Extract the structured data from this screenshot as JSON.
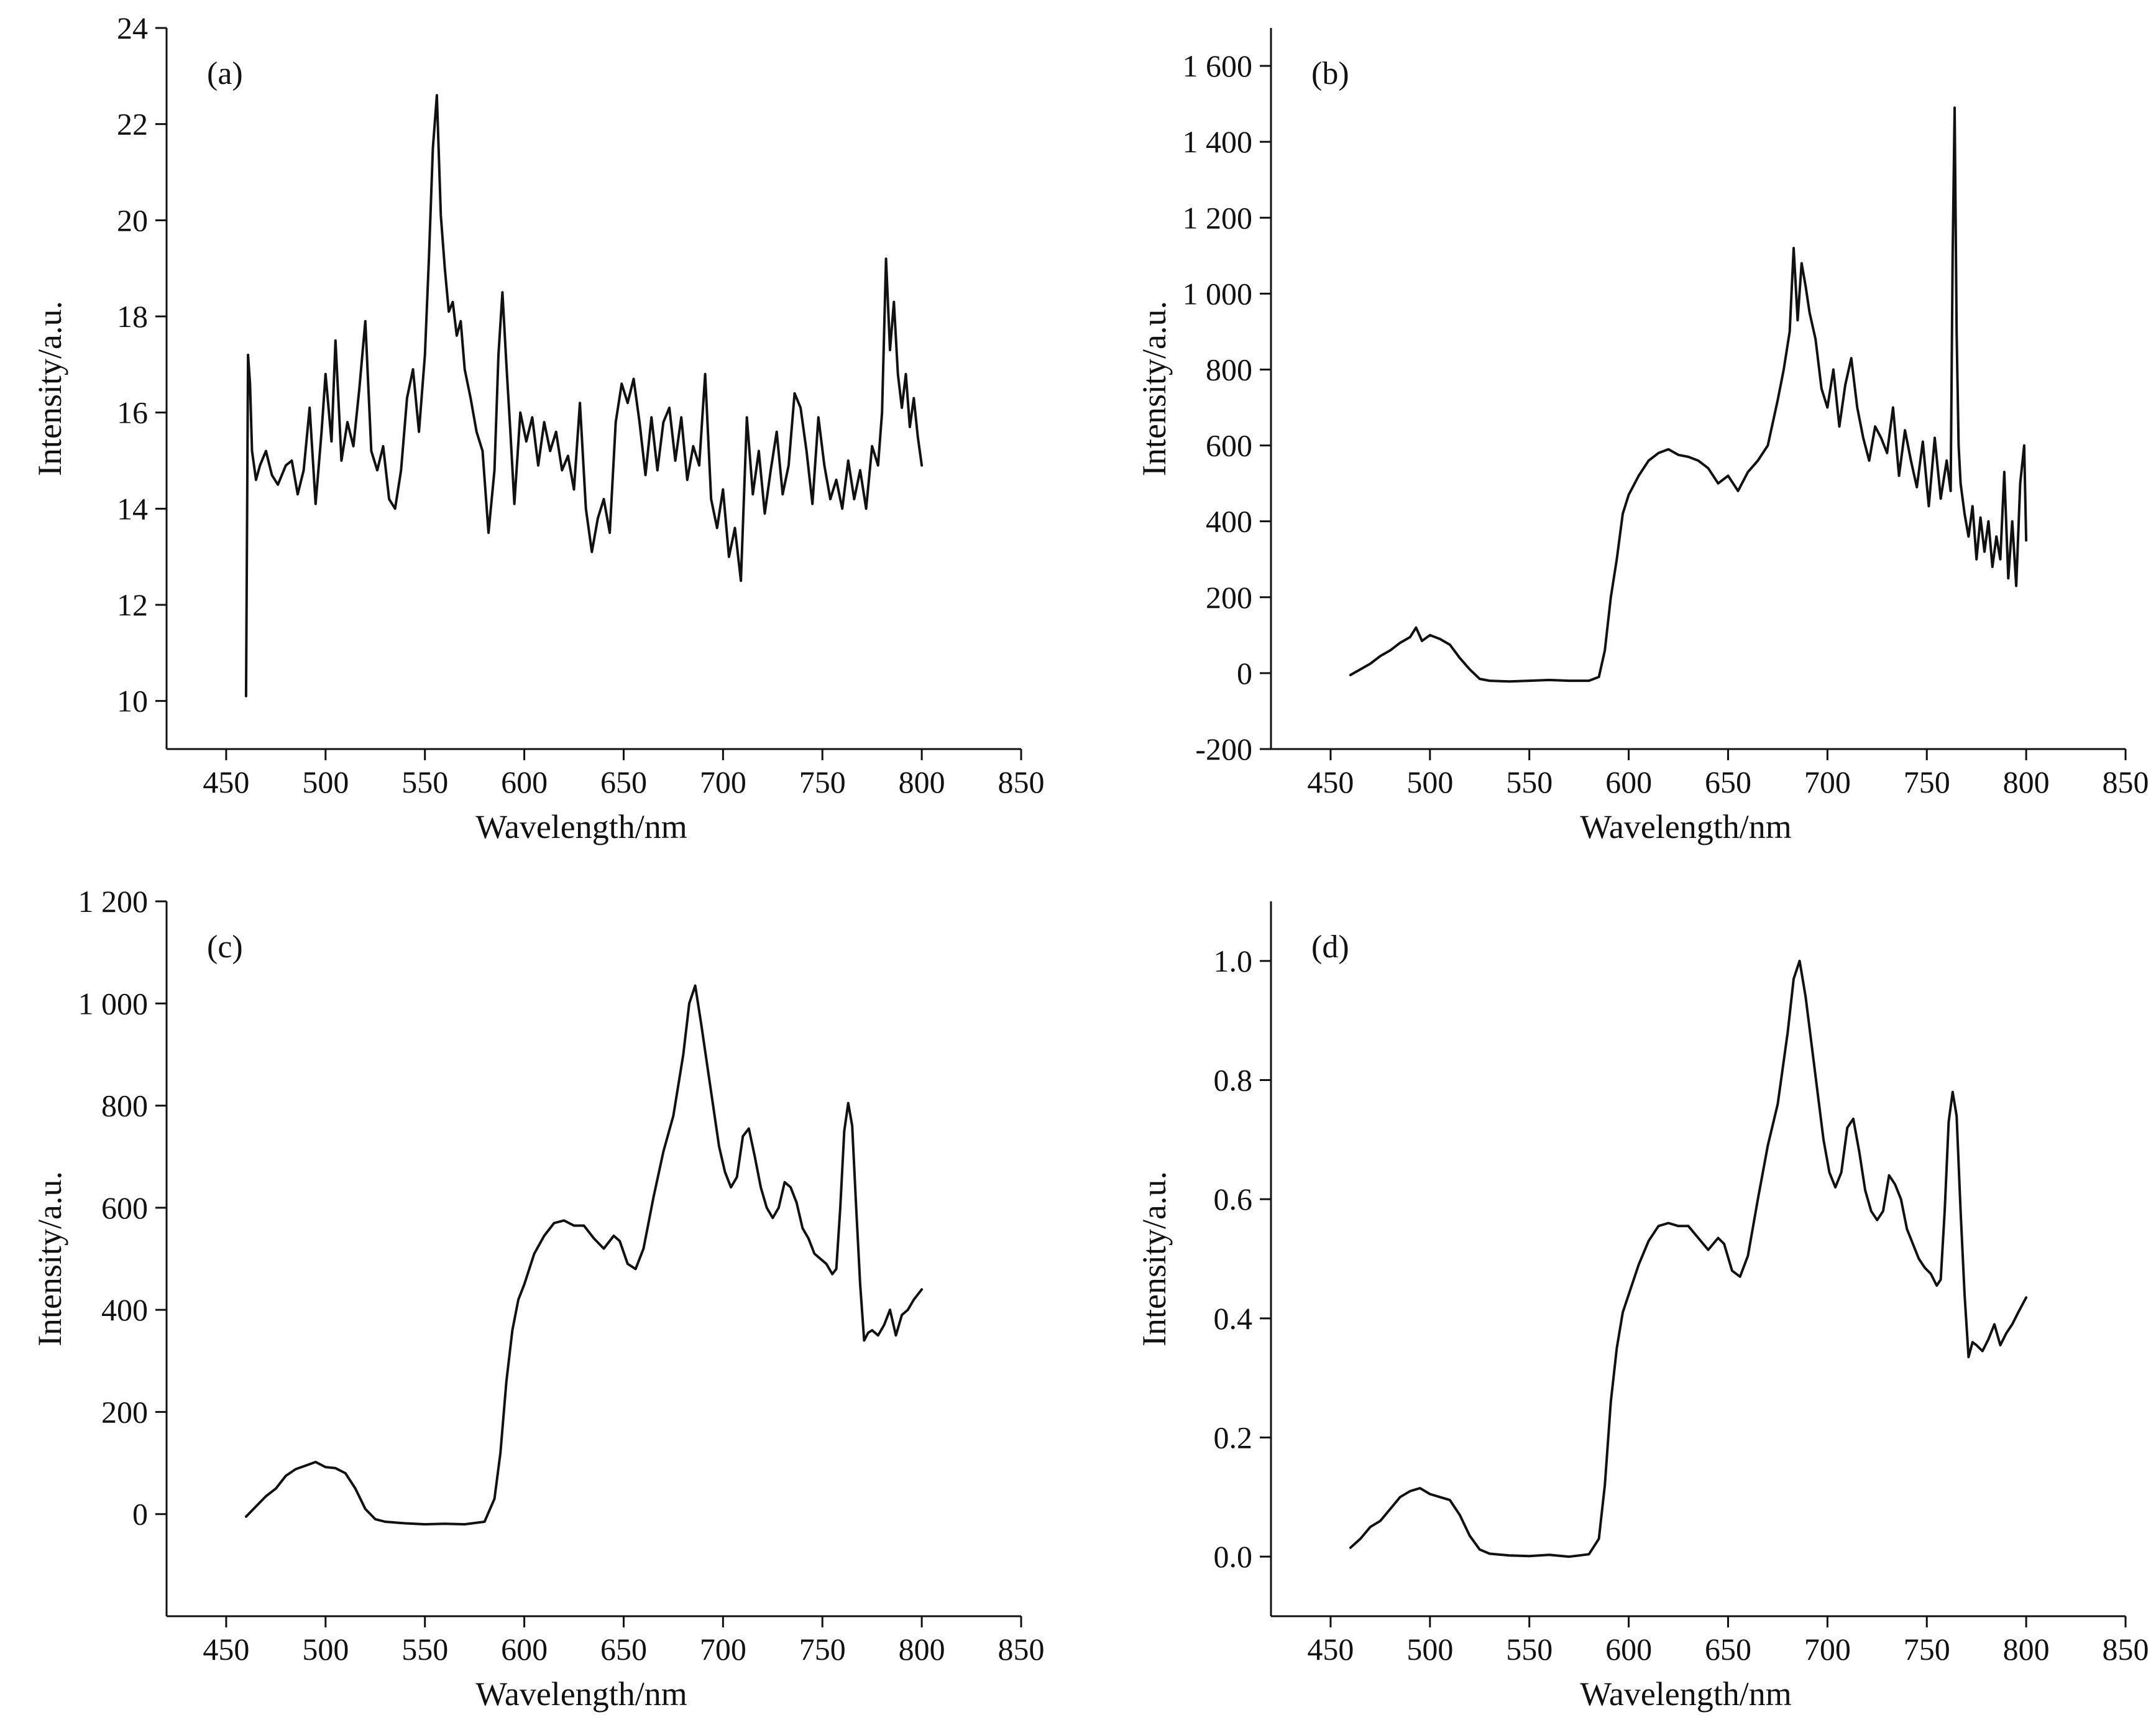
{
  "figure": {
    "background": "#ffffff",
    "line_color": "#111111"
  },
  "chart_data": [
    {
      "id": "a",
      "type": "line",
      "panel_label": "(a)",
      "xlabel": "Wavelength/nm",
      "ylabel": "Intensity/a.u.",
      "xlim": [
        420,
        850
      ],
      "ylim": [
        9,
        24
      ],
      "xticks": [
        450,
        500,
        550,
        600,
        650,
        700,
        750,
        800,
        850
      ],
      "yticks": [
        10,
        12,
        14,
        16,
        18,
        20,
        22,
        24
      ],
      "ytick_labels": [
        "10",
        "12",
        "14",
        "16",
        "18",
        "20",
        "22",
        "24"
      ],
      "grid": false,
      "legend": "none",
      "series": [
        {
          "x": [
            460,
            461,
            462,
            463,
            465,
            467,
            470,
            473,
            476,
            480,
            483,
            486,
            489,
            492,
            495,
            498,
            500,
            503,
            505,
            508,
            511,
            514,
            517,
            520,
            523,
            526,
            529,
            532,
            535,
            538,
            541,
            544,
            547,
            550,
            552,
            554,
            556,
            558,
            560,
            562,
            564,
            566,
            568,
            570,
            573,
            576,
            579,
            582,
            585,
            587,
            589,
            591,
            593,
            595,
            598,
            601,
            604,
            607,
            610,
            613,
            616,
            619,
            622,
            625,
            628,
            631,
            634,
            637,
            640,
            643,
            646,
            649,
            652,
            655,
            658,
            661,
            664,
            667,
            670,
            673,
            676,
            679,
            682,
            685,
            688,
            691,
            694,
            697,
            700,
            703,
            706,
            709,
            712,
            715,
            718,
            721,
            724,
            727,
            730,
            733,
            736,
            739,
            742,
            745,
            748,
            751,
            754,
            757,
            760,
            763,
            766,
            769,
            772,
            775,
            778,
            780,
            782,
            784,
            786,
            788,
            790,
            792,
            794,
            796,
            798,
            800
          ],
          "values": [
            10.1,
            17.2,
            16.6,
            15.2,
            14.6,
            14.9,
            15.2,
            14.7,
            14.5,
            14.9,
            15.0,
            14.3,
            14.8,
            16.1,
            14.1,
            15.6,
            16.8,
            15.4,
            17.5,
            15.0,
            15.8,
            15.3,
            16.5,
            17.9,
            15.2,
            14.8,
            15.3,
            14.2,
            14.0,
            14.8,
            16.3,
            16.9,
            15.6,
            17.2,
            19.2,
            21.5,
            22.6,
            20.1,
            19.0,
            18.1,
            18.3,
            17.6,
            17.9,
            16.9,
            16.3,
            15.6,
            15.2,
            13.5,
            14.8,
            17.2,
            18.5,
            17.0,
            15.6,
            14.1,
            16.0,
            15.4,
            15.9,
            14.9,
            15.8,
            15.2,
            15.6,
            14.8,
            15.1,
            14.4,
            16.2,
            14.0,
            13.1,
            13.8,
            14.2,
            13.5,
            15.8,
            16.6,
            16.2,
            16.7,
            15.8,
            14.7,
            15.9,
            14.8,
            15.8,
            16.1,
            15.0,
            15.9,
            14.6,
            15.3,
            14.9,
            16.8,
            14.2,
            13.6,
            14.4,
            13.0,
            13.6,
            12.5,
            15.9,
            14.3,
            15.2,
            13.9,
            14.8,
            15.6,
            14.3,
            14.9,
            16.4,
            16.1,
            15.2,
            14.1,
            15.9,
            14.9,
            14.2,
            14.6,
            14.0,
            15.0,
            14.2,
            14.8,
            14.0,
            15.3,
            14.9,
            16.0,
            19.2,
            17.3,
            18.3,
            16.8,
            16.1,
            16.8,
            15.7,
            16.3,
            15.5,
            14.9
          ]
        }
      ]
    },
    {
      "id": "b",
      "type": "line",
      "panel_label": "(b)",
      "xlabel": "Wavelength/nm",
      "ylabel": "Intensity/a.u.",
      "xlim": [
        420,
        850
      ],
      "ylim": [
        -200,
        1700
      ],
      "xticks": [
        450,
        500,
        550,
        600,
        650,
        700,
        750,
        800,
        850
      ],
      "yticks": [
        -200,
        0,
        200,
        400,
        600,
        800,
        1000,
        1200,
        1400,
        1600
      ],
      "ytick_labels": [
        "-200",
        "0",
        "200",
        "400",
        "600",
        "800",
        "1 000",
        "1 200",
        "1 400",
        "1 600"
      ],
      "grid": false,
      "legend": "none",
      "series": [
        {
          "x": [
            460,
            465,
            470,
            475,
            480,
            485,
            490,
            493,
            496,
            500,
            505,
            510,
            515,
            520,
            525,
            530,
            540,
            550,
            560,
            570,
            580,
            585,
            588,
            591,
            594,
            597,
            600,
            605,
            610,
            615,
            620,
            625,
            630,
            635,
            640,
            645,
            650,
            655,
            660,
            665,
            670,
            675,
            678,
            681,
            683,
            685,
            687,
            689,
            691,
            694,
            697,
            700,
            703,
            706,
            709,
            712,
            715,
            718,
            721,
            724,
            727,
            730,
            733,
            736,
            739,
            742,
            745,
            748,
            751,
            754,
            757,
            760,
            762,
            763,
            764,
            765,
            766,
            767,
            769,
            771,
            773,
            775,
            777,
            779,
            781,
            783,
            785,
            787,
            789,
            791,
            793,
            795,
            797,
            799,
            800
          ],
          "values": [
            -5,
            10,
            25,
            45,
            60,
            80,
            95,
            120,
            85,
            100,
            90,
            75,
            40,
            10,
            -15,
            -20,
            -22,
            -20,
            -18,
            -20,
            -20,
            -10,
            60,
            200,
            300,
            420,
            470,
            520,
            560,
            580,
            590,
            575,
            570,
            560,
            540,
            500,
            520,
            480,
            530,
            560,
            600,
            720,
            800,
            900,
            1120,
            930,
            1080,
            1020,
            950,
            880,
            750,
            700,
            800,
            650,
            760,
            830,
            700,
            620,
            560,
            650,
            620,
            580,
            700,
            520,
            640,
            560,
            490,
            610,
            440,
            620,
            460,
            560,
            480,
            1100,
            1490,
            900,
            600,
            500,
            420,
            360,
            440,
            300,
            410,
            320,
            400,
            280,
            360,
            300,
            530,
            250,
            400,
            230,
            500,
            600,
            350
          ]
        }
      ]
    },
    {
      "id": "c",
      "type": "line",
      "panel_label": "(c)",
      "xlabel": "Wavelength/nm",
      "ylabel": "Intensity/a.u.",
      "xlim": [
        420,
        850
      ],
      "ylim": [
        -200,
        1200
      ],
      "xticks": [
        450,
        500,
        550,
        600,
        650,
        700,
        750,
        800,
        850
      ],
      "yticks": [
        0,
        200,
        400,
        600,
        800,
        1000,
        1200
      ],
      "ytick_labels": [
        "0",
        "200",
        "400",
        "600",
        "800",
        "1 000",
        "1 200"
      ],
      "grid": false,
      "legend": "none",
      "series": [
        {
          "x": [
            460,
            465,
            470,
            475,
            480,
            485,
            490,
            495,
            500,
            505,
            510,
            515,
            520,
            525,
            530,
            540,
            550,
            560,
            570,
            580,
            585,
            588,
            591,
            594,
            597,
            600,
            605,
            610,
            615,
            620,
            625,
            630,
            635,
            640,
            645,
            648,
            652,
            656,
            660,
            665,
            670,
            675,
            680,
            683,
            686,
            689,
            692,
            695,
            698,
            701,
            704,
            707,
            710,
            713,
            716,
            719,
            722,
            725,
            728,
            731,
            734,
            737,
            740,
            743,
            746,
            749,
            752,
            755,
            757,
            759,
            761,
            763,
            765,
            767,
            769,
            771,
            773,
            775,
            778,
            781,
            784,
            787,
            790,
            793,
            796,
            800
          ],
          "values": [
            -5,
            15,
            35,
            50,
            75,
            88,
            95,
            102,
            92,
            90,
            80,
            50,
            10,
            -10,
            -15,
            -18,
            -20,
            -19,
            -20,
            -15,
            30,
            120,
            260,
            360,
            420,
            450,
            510,
            545,
            570,
            575,
            565,
            565,
            540,
            520,
            545,
            535,
            490,
            480,
            520,
            620,
            710,
            780,
            900,
            1000,
            1035,
            960,
            880,
            800,
            720,
            670,
            640,
            660,
            740,
            755,
            700,
            640,
            600,
            580,
            600,
            650,
            640,
            610,
            560,
            540,
            510,
            500,
            490,
            470,
            480,
            600,
            750,
            805,
            760,
            600,
            450,
            340,
            355,
            360,
            350,
            370,
            400,
            350,
            390,
            400,
            420,
            440
          ]
        }
      ]
    },
    {
      "id": "d",
      "type": "line",
      "panel_label": "(d)",
      "xlabel": "Wavelength/nm",
      "ylabel": "Intensity/a.u.",
      "xlim": [
        420,
        850
      ],
      "ylim": [
        -0.1,
        1.1
      ],
      "xticks": [
        450,
        500,
        550,
        600,
        650,
        700,
        750,
        800,
        850
      ],
      "yticks": [
        0.0,
        0.2,
        0.4,
        0.6,
        0.8,
        1.0
      ],
      "ytick_labels": [
        "0.0",
        "0.2",
        "0.4",
        "0.6",
        "0.8",
        "1.0"
      ],
      "grid": false,
      "legend": "none",
      "series": [
        {
          "x": [
            460,
            465,
            470,
            475,
            480,
            485,
            490,
            495,
            500,
            505,
            510,
            515,
            520,
            525,
            530,
            540,
            550,
            560,
            570,
            580,
            585,
            588,
            591,
            594,
            597,
            600,
            605,
            610,
            615,
            620,
            625,
            630,
            635,
            640,
            645,
            648,
            652,
            656,
            660,
            665,
            670,
            675,
            680,
            683,
            686,
            689,
            692,
            695,
            698,
            701,
            704,
            707,
            710,
            713,
            716,
            719,
            722,
            725,
            728,
            731,
            734,
            737,
            740,
            743,
            746,
            749,
            752,
            755,
            757,
            759,
            761,
            763,
            765,
            767,
            769,
            771,
            773,
            775,
            778,
            781,
            784,
            787,
            790,
            793,
            796,
            800
          ],
          "values": [
            0.015,
            0.03,
            0.05,
            0.06,
            0.08,
            0.1,
            0.11,
            0.115,
            0.105,
            0.1,
            0.095,
            0.07,
            0.035,
            0.012,
            0.005,
            0.002,
            0.001,
            0.003,
            0.0,
            0.004,
            0.03,
            0.12,
            0.26,
            0.35,
            0.41,
            0.44,
            0.49,
            0.53,
            0.555,
            0.56,
            0.555,
            0.555,
            0.535,
            0.515,
            0.535,
            0.525,
            0.48,
            0.47,
            0.505,
            0.6,
            0.69,
            0.76,
            0.88,
            0.97,
            1.0,
            0.94,
            0.86,
            0.78,
            0.7,
            0.645,
            0.62,
            0.645,
            0.72,
            0.735,
            0.68,
            0.615,
            0.58,
            0.565,
            0.58,
            0.64,
            0.625,
            0.6,
            0.55,
            0.525,
            0.5,
            0.485,
            0.475,
            0.455,
            0.465,
            0.58,
            0.73,
            0.78,
            0.74,
            0.58,
            0.44,
            0.335,
            0.36,
            0.355,
            0.345,
            0.365,
            0.39,
            0.355,
            0.375,
            0.39,
            0.41,
            0.435
          ]
        }
      ]
    }
  ]
}
